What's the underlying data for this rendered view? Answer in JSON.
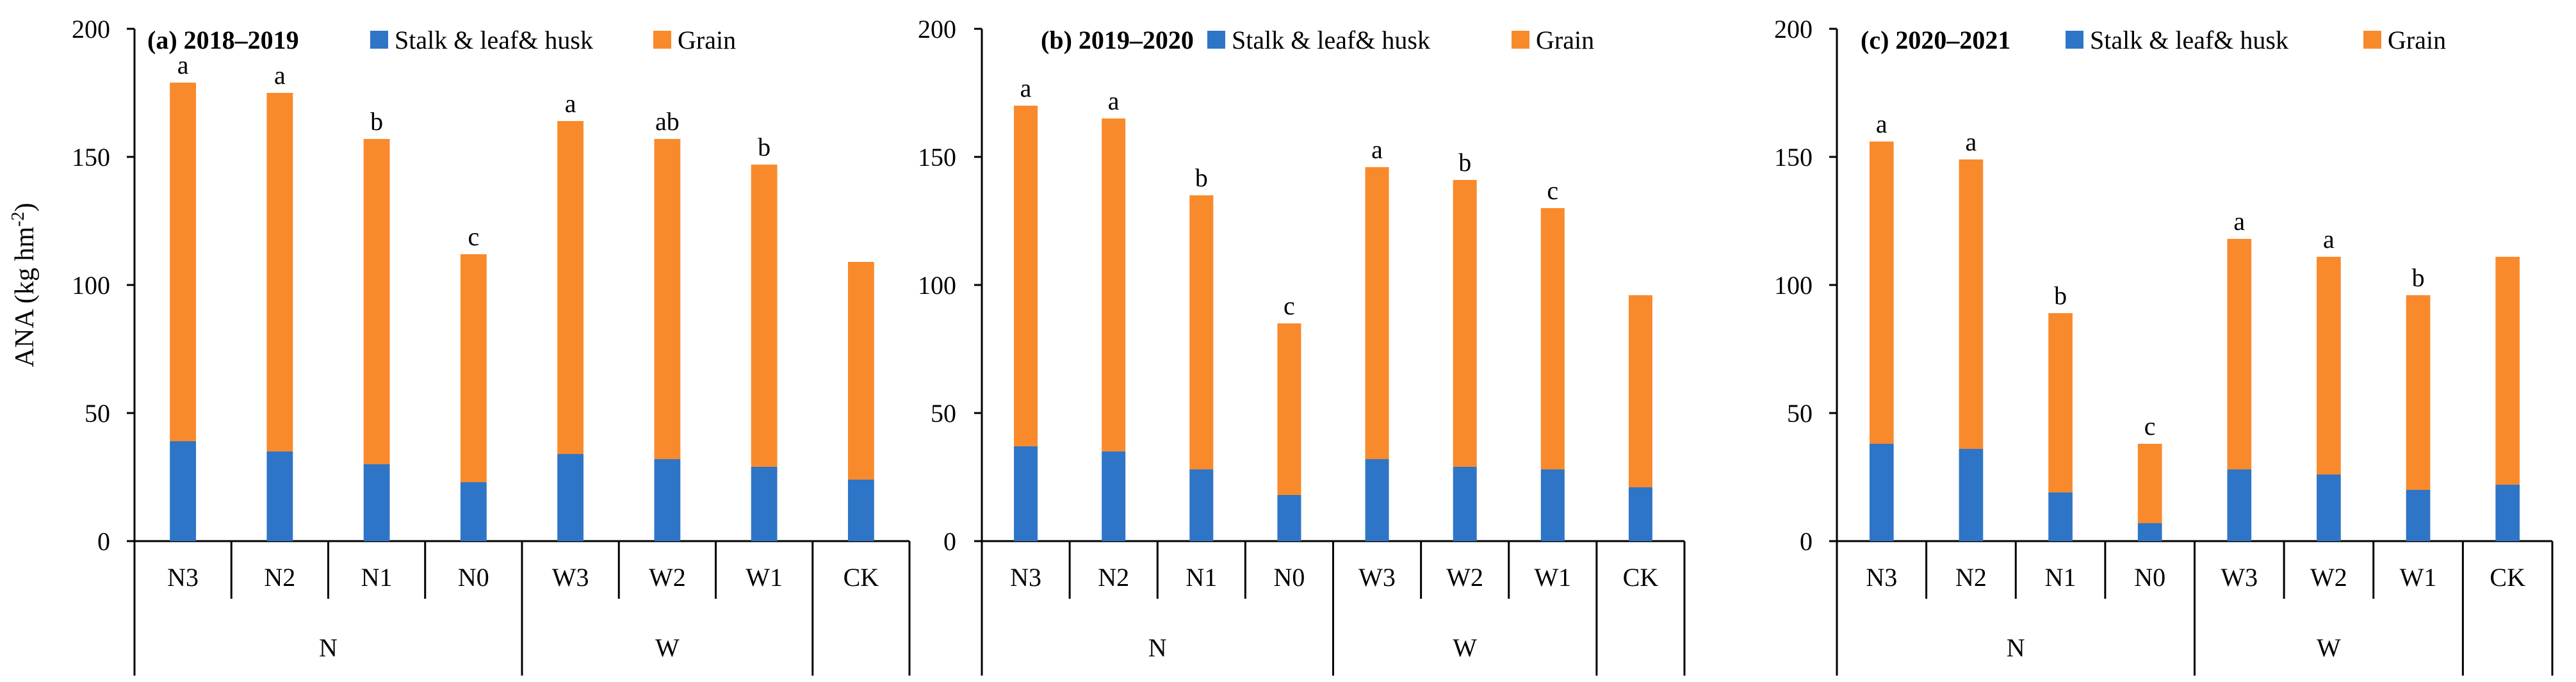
{
  "chart_data": [
    {
      "type": "bar",
      "stacked": true,
      "panel_label": "(a)",
      "title": "2018–2019",
      "ylabel": "ANA (kg hm",
      "ylabel_sup": "-2",
      "ylabel_close": ")",
      "ylim": [
        0,
        200
      ],
      "yticks": [
        "0",
        "50",
        "100",
        "150",
        "200"
      ],
      "categories": [
        "N3",
        "N2",
        "N1",
        "N0",
        "W3",
        "W2",
        "W1",
        "CK"
      ],
      "groups": [
        {
          "label": "N",
          "span": [
            0,
            3
          ]
        },
        {
          "label": "W",
          "span": [
            4,
            6
          ]
        }
      ],
      "series": [
        {
          "name": "Stalk & leaf& husk",
          "color": "#2E75C7",
          "values": [
            39,
            35,
            30,
            23,
            34,
            32,
            29,
            24
          ]
        },
        {
          "name": "Grain",
          "color": "#F98A2C",
          "values": [
            140,
            140,
            127,
            89,
            130,
            125,
            118,
            85
          ]
        }
      ],
      "significance": [
        "a",
        "a",
        "b",
        "c",
        "a",
        "ab",
        "b",
        ""
      ]
    },
    {
      "type": "bar",
      "stacked": true,
      "panel_label": "(b)",
      "title": "2019–2020",
      "ylabel": "",
      "ylim": [
        0,
        200
      ],
      "yticks": [
        "0",
        "50",
        "100",
        "150",
        "200"
      ],
      "categories": [
        "N3",
        "N2",
        "N1",
        "N0",
        "W3",
        "W2",
        "W1",
        "CK"
      ],
      "groups": [
        {
          "label": "N",
          "span": [
            0,
            3
          ]
        },
        {
          "label": "W",
          "span": [
            4,
            6
          ]
        }
      ],
      "series": [
        {
          "name": "Stalk & leaf& husk",
          "color": "#2E75C7",
          "values": [
            37,
            35,
            28,
            18,
            32,
            29,
            28,
            21
          ]
        },
        {
          "name": "Grain",
          "color": "#F98A2C",
          "values": [
            133,
            130,
            107,
            67,
            114,
            112,
            102,
            75
          ]
        }
      ],
      "significance": [
        "a",
        "a",
        "b",
        "c",
        "a",
        "b",
        "c",
        ""
      ]
    },
    {
      "type": "bar",
      "stacked": true,
      "panel_label": "(c)",
      "title": "2020–2021",
      "ylabel": "",
      "ylim": [
        0,
        200
      ],
      "yticks": [
        "0",
        "50",
        "100",
        "150",
        "200"
      ],
      "categories": [
        "N3",
        "N2",
        "N1",
        "N0",
        "W3",
        "W2",
        "W1",
        "CK"
      ],
      "groups": [
        {
          "label": "N",
          "span": [
            0,
            3
          ]
        },
        {
          "label": "W",
          "span": [
            4,
            6
          ]
        }
      ],
      "series": [
        {
          "name": "Stalk & leaf& husk",
          "color": "#2E75C7",
          "values": [
            38,
            36,
            19,
            7,
            28,
            26,
            20,
            22
          ]
        },
        {
          "name": "Grain",
          "color": "#F98A2C",
          "values": [
            118,
            113,
            70,
            31,
            90,
            85,
            76,
            89
          ]
        }
      ],
      "significance": [
        "a",
        "a",
        "b",
        "c",
        "a",
        "a",
        "b",
        ""
      ]
    }
  ]
}
